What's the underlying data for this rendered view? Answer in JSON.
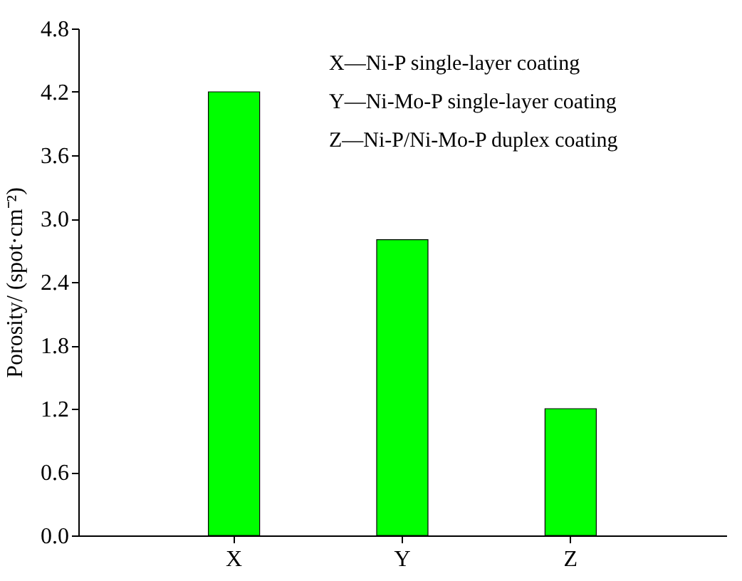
{
  "chart_data": {
    "type": "bar",
    "ylabel": "Porosity/ (spot·cm⁻²)",
    "categories": [
      "X",
      "Y",
      "Z"
    ],
    "values": [
      4.2,
      2.8,
      1.2
    ],
    "color": "#00ff00",
    "ylim": [
      0,
      4.8
    ],
    "yticks": [
      {
        "value": 0,
        "label": "0.0"
      },
      0.6,
      1.2,
      1.8,
      2.4,
      {
        "value": 3,
        "label": "3.0"
      },
      3.6,
      4.2,
      4.8
    ],
    "annotations": [
      "X—Ni-P single-layer coating",
      "Y—Ni-Mo-P single-layer coating",
      "Z—Ni-P/Ni-Mo-P duplex coating"
    ],
    "grid": false
  }
}
